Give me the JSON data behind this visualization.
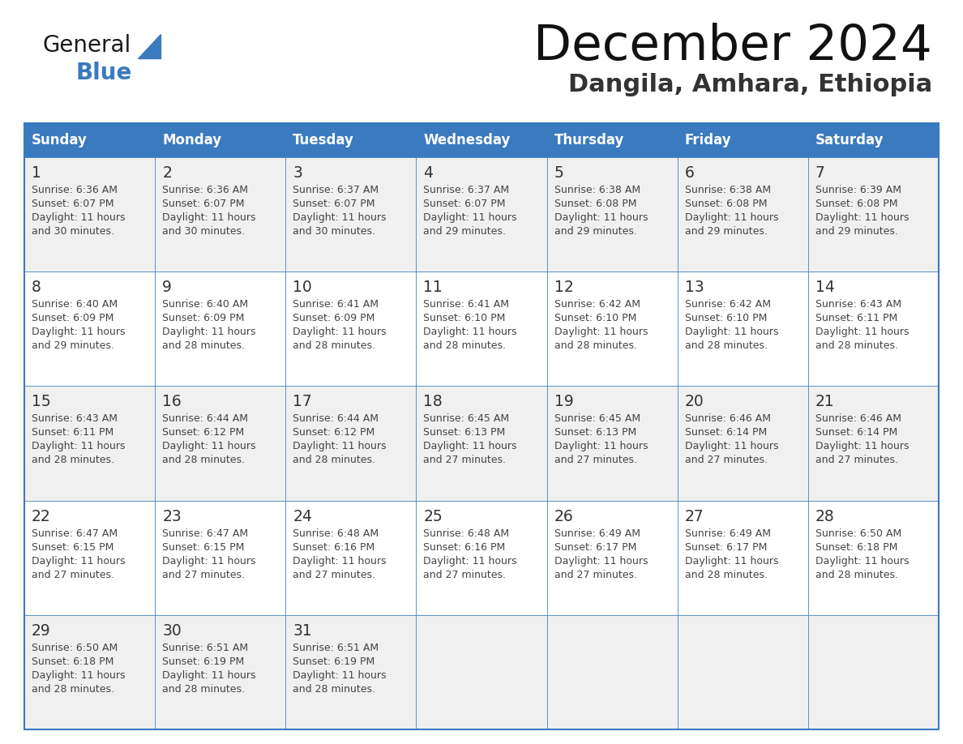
{
  "title": "December 2024",
  "subtitle": "Dangila, Amhara, Ethiopia",
  "days_of_week": [
    "Sunday",
    "Monday",
    "Tuesday",
    "Wednesday",
    "Thursday",
    "Friday",
    "Saturday"
  ],
  "header_bg": "#3a7abf",
  "header_text": "#ffffff",
  "row_bg_odd": "#f0f0f0",
  "row_bg_even": "#ffffff",
  "cell_text": "#333333",
  "day_num_color": "#333333",
  "border_color": "#3a7abf",
  "grid_line_color": "#3a7abf",
  "calendar_data": [
    [
      {
        "day": 1,
        "sunrise": "6:36 AM",
        "sunset": "6:07 PM",
        "daylight": "11 hours and 30 minutes."
      },
      {
        "day": 2,
        "sunrise": "6:36 AM",
        "sunset": "6:07 PM",
        "daylight": "11 hours and 30 minutes."
      },
      {
        "day": 3,
        "sunrise": "6:37 AM",
        "sunset": "6:07 PM",
        "daylight": "11 hours and 30 minutes."
      },
      {
        "day": 4,
        "sunrise": "6:37 AM",
        "sunset": "6:07 PM",
        "daylight": "11 hours and 29 minutes."
      },
      {
        "day": 5,
        "sunrise": "6:38 AM",
        "sunset": "6:08 PM",
        "daylight": "11 hours and 29 minutes."
      },
      {
        "day": 6,
        "sunrise": "6:38 AM",
        "sunset": "6:08 PM",
        "daylight": "11 hours and 29 minutes."
      },
      {
        "day": 7,
        "sunrise": "6:39 AM",
        "sunset": "6:08 PM",
        "daylight": "11 hours and 29 minutes."
      }
    ],
    [
      {
        "day": 8,
        "sunrise": "6:40 AM",
        "sunset": "6:09 PM",
        "daylight": "11 hours and 29 minutes."
      },
      {
        "day": 9,
        "sunrise": "6:40 AM",
        "sunset": "6:09 PM",
        "daylight": "11 hours and 28 minutes."
      },
      {
        "day": 10,
        "sunrise": "6:41 AM",
        "sunset": "6:09 PM",
        "daylight": "11 hours and 28 minutes."
      },
      {
        "day": 11,
        "sunrise": "6:41 AM",
        "sunset": "6:10 PM",
        "daylight": "11 hours and 28 minutes."
      },
      {
        "day": 12,
        "sunrise": "6:42 AM",
        "sunset": "6:10 PM",
        "daylight": "11 hours and 28 minutes."
      },
      {
        "day": 13,
        "sunrise": "6:42 AM",
        "sunset": "6:10 PM",
        "daylight": "11 hours and 28 minutes."
      },
      {
        "day": 14,
        "sunrise": "6:43 AM",
        "sunset": "6:11 PM",
        "daylight": "11 hours and 28 minutes."
      }
    ],
    [
      {
        "day": 15,
        "sunrise": "6:43 AM",
        "sunset": "6:11 PM",
        "daylight": "11 hours and 28 minutes."
      },
      {
        "day": 16,
        "sunrise": "6:44 AM",
        "sunset": "6:12 PM",
        "daylight": "11 hours and 28 minutes."
      },
      {
        "day": 17,
        "sunrise": "6:44 AM",
        "sunset": "6:12 PM",
        "daylight": "11 hours and 28 minutes."
      },
      {
        "day": 18,
        "sunrise": "6:45 AM",
        "sunset": "6:13 PM",
        "daylight": "11 hours and 27 minutes."
      },
      {
        "day": 19,
        "sunrise": "6:45 AM",
        "sunset": "6:13 PM",
        "daylight": "11 hours and 27 minutes."
      },
      {
        "day": 20,
        "sunrise": "6:46 AM",
        "sunset": "6:14 PM",
        "daylight": "11 hours and 27 minutes."
      },
      {
        "day": 21,
        "sunrise": "6:46 AM",
        "sunset": "6:14 PM",
        "daylight": "11 hours and 27 minutes."
      }
    ],
    [
      {
        "day": 22,
        "sunrise": "6:47 AM",
        "sunset": "6:15 PM",
        "daylight": "11 hours and 27 minutes."
      },
      {
        "day": 23,
        "sunrise": "6:47 AM",
        "sunset": "6:15 PM",
        "daylight": "11 hours and 27 minutes."
      },
      {
        "day": 24,
        "sunrise": "6:48 AM",
        "sunset": "6:16 PM",
        "daylight": "11 hours and 27 minutes."
      },
      {
        "day": 25,
        "sunrise": "6:48 AM",
        "sunset": "6:16 PM",
        "daylight": "11 hours and 27 minutes."
      },
      {
        "day": 26,
        "sunrise": "6:49 AM",
        "sunset": "6:17 PM",
        "daylight": "11 hours and 27 minutes."
      },
      {
        "day": 27,
        "sunrise": "6:49 AM",
        "sunset": "6:17 PM",
        "daylight": "11 hours and 28 minutes."
      },
      {
        "day": 28,
        "sunrise": "6:50 AM",
        "sunset": "6:18 PM",
        "daylight": "11 hours and 28 minutes."
      }
    ],
    [
      {
        "day": 29,
        "sunrise": "6:50 AM",
        "sunset": "6:18 PM",
        "daylight": "11 hours and 28 minutes."
      },
      {
        "day": 30,
        "sunrise": "6:51 AM",
        "sunset": "6:19 PM",
        "daylight": "11 hours and 28 minutes."
      },
      {
        "day": 31,
        "sunrise": "6:51 AM",
        "sunset": "6:19 PM",
        "daylight": "11 hours and 28 minutes."
      },
      null,
      null,
      null,
      null
    ]
  ]
}
